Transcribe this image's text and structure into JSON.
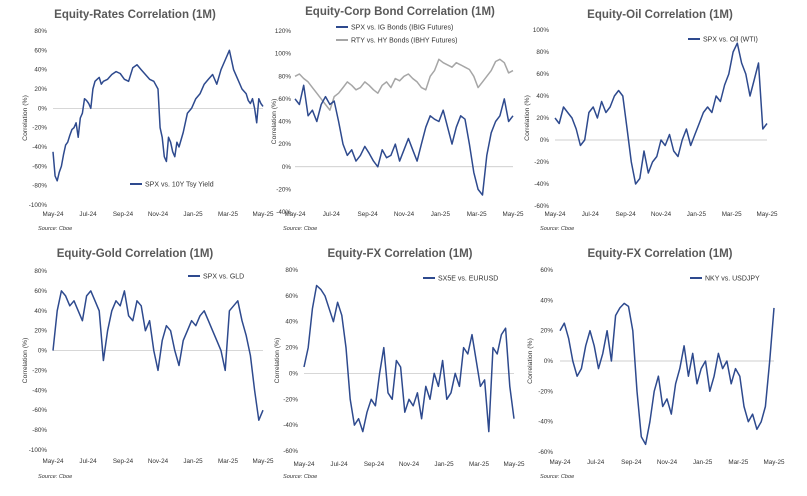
{
  "chart_data": [
    {
      "type": "line",
      "title": "Equity-Rates Correlation (1M)",
      "ylabel": "Correlation (%)",
      "source": "Source: Cboe",
      "ylim": [
        -100,
        80
      ],
      "yticks": [
        "80%",
        "60%",
        "40%",
        "20%",
        "0%",
        "-20%",
        "-40%",
        "-60%",
        "-80%",
        "-100%"
      ],
      "xticks": [
        "May-24",
        "Jul-24",
        "Sep-24",
        "Nov-24",
        "Jan-25",
        "Mar-25",
        "May-25"
      ],
      "legend_position": "bottom-left",
      "series": [
        {
          "name": "SPX vs. 10Y Tsy Yield",
          "color": "#2e4a8e",
          "x": [
            0,
            0.01,
            0.02,
            0.03,
            0.04,
            0.05,
            0.06,
            0.07,
            0.08,
            0.09,
            0.1,
            0.11,
            0.12,
            0.13,
            0.14,
            0.15,
            0.16,
            0.17,
            0.18,
            0.19,
            0.2,
            0.21,
            0.22,
            0.23,
            0.24,
            0.26,
            0.28,
            0.3,
            0.32,
            0.34,
            0.36,
            0.38,
            0.4,
            0.42,
            0.44,
            0.46,
            0.48,
            0.5,
            0.51,
            0.52,
            0.53,
            0.54,
            0.55,
            0.56,
            0.57,
            0.58,
            0.59,
            0.6,
            0.62,
            0.64,
            0.66,
            0.68,
            0.7,
            0.72,
            0.74,
            0.76,
            0.78,
            0.8,
            0.82,
            0.84,
            0.86,
            0.88,
            0.9,
            0.92,
            0.93,
            0.94,
            0.95,
            0.96,
            0.97,
            0.98,
            0.99,
            1
          ],
          "values": [
            -45,
            -70,
            -75,
            -66,
            -60,
            -48,
            -38,
            -35,
            -28,
            -22,
            -20,
            -15,
            -30,
            -10,
            -5,
            10,
            8,
            5,
            0,
            20,
            28,
            30,
            32,
            25,
            28,
            30,
            35,
            38,
            36,
            30,
            28,
            42,
            45,
            40,
            35,
            30,
            28,
            20,
            -20,
            -30,
            -50,
            -55,
            -30,
            -35,
            -45,
            -50,
            -35,
            -40,
            -25,
            -5,
            0,
            10,
            15,
            25,
            30,
            35,
            25,
            40,
            50,
            60,
            40,
            30,
            20,
            15,
            8,
            5,
            10,
            0,
            -15,
            10,
            5,
            2
          ]
        }
      ]
    },
    {
      "type": "line",
      "title": "Equity-Corp Bond Correlation (1M)",
      "ylabel": "Correlation (%)",
      "source": "Source: Cboe",
      "ylim": [
        -40,
        120
      ],
      "yticks": [
        "120%",
        "100%",
        "80%",
        "60%",
        "40%",
        "20%",
        "0%",
        "-20%",
        "-40%"
      ],
      "xticks": [
        "May-24",
        "Jul-24",
        "Sep-24",
        "Nov-24",
        "Jan-25",
        "Mar-25",
        "May-25"
      ],
      "legend_position": "top-center",
      "series": [
        {
          "name": "SPX vs. IG Bonds (IBIG Futures)",
          "color": "#2e4a8e",
          "x": [
            0,
            0.02,
            0.04,
            0.06,
            0.08,
            0.1,
            0.12,
            0.14,
            0.16,
            0.18,
            0.2,
            0.22,
            0.24,
            0.26,
            0.28,
            0.3,
            0.32,
            0.34,
            0.36,
            0.38,
            0.4,
            0.42,
            0.44,
            0.46,
            0.48,
            0.5,
            0.52,
            0.54,
            0.56,
            0.58,
            0.6,
            0.62,
            0.64,
            0.66,
            0.68,
            0.7,
            0.72,
            0.74,
            0.76,
            0.78,
            0.8,
            0.82,
            0.84,
            0.86,
            0.88,
            0.9,
            0.92,
            0.94,
            0.96,
            0.98,
            1
          ],
          "values": [
            60,
            55,
            72,
            45,
            50,
            40,
            55,
            62,
            55,
            58,
            40,
            20,
            10,
            15,
            5,
            10,
            18,
            12,
            5,
            0,
            15,
            8,
            10,
            20,
            5,
            15,
            25,
            15,
            5,
            20,
            35,
            45,
            42,
            40,
            50,
            35,
            20,
            35,
            45,
            42,
            20,
            -5,
            -20,
            -25,
            10,
            30,
            40,
            45,
            60,
            40,
            45
          ]
        },
        {
          "name": "RTY vs. HY Bonds (IBHY Futures)",
          "color": "#a6a6a6",
          "x": [
            0,
            0.02,
            0.04,
            0.06,
            0.08,
            0.1,
            0.12,
            0.14,
            0.16,
            0.18,
            0.2,
            0.22,
            0.24,
            0.26,
            0.28,
            0.3,
            0.32,
            0.34,
            0.36,
            0.38,
            0.4,
            0.42,
            0.44,
            0.46,
            0.48,
            0.5,
            0.52,
            0.54,
            0.56,
            0.58,
            0.6,
            0.62,
            0.64,
            0.66,
            0.68,
            0.7,
            0.72,
            0.74,
            0.76,
            0.78,
            0.8,
            0.82,
            0.84,
            0.86,
            0.88,
            0.9,
            0.92,
            0.94,
            0.96,
            0.98,
            1
          ],
          "values": [
            80,
            82,
            78,
            75,
            70,
            65,
            60,
            55,
            50,
            62,
            65,
            70,
            75,
            72,
            68,
            70,
            75,
            72,
            68,
            65,
            72,
            75,
            70,
            78,
            76,
            80,
            82,
            78,
            75,
            70,
            68,
            80,
            85,
            95,
            92,
            90,
            88,
            92,
            90,
            88,
            86,
            80,
            70,
            75,
            80,
            85,
            93,
            95,
            92,
            83,
            85
          ]
        }
      ]
    },
    {
      "type": "line",
      "title": "Equity-Oil Correlation (1M)",
      "ylabel": "Correlation (%)",
      "source": "Source: Cboe",
      "ylim": [
        -60,
        100
      ],
      "yticks": [
        "100%",
        "80%",
        "60%",
        "40%",
        "20%",
        "0%",
        "-20%",
        "-40%",
        "-60%"
      ],
      "xticks": [
        "May-24",
        "Jul-24",
        "Sep-24",
        "Nov-24",
        "Jan-25",
        "Mar-25",
        "May-25"
      ],
      "legend_position": "top-right",
      "series": [
        {
          "name": "SPX vs. Oil (WTI)",
          "color": "#2e4a8e",
          "x": [
            0,
            0.02,
            0.04,
            0.06,
            0.08,
            0.1,
            0.12,
            0.14,
            0.16,
            0.18,
            0.2,
            0.22,
            0.24,
            0.26,
            0.28,
            0.3,
            0.32,
            0.34,
            0.36,
            0.38,
            0.4,
            0.42,
            0.44,
            0.46,
            0.48,
            0.5,
            0.52,
            0.54,
            0.56,
            0.58,
            0.6,
            0.62,
            0.64,
            0.66,
            0.68,
            0.7,
            0.72,
            0.74,
            0.76,
            0.78,
            0.8,
            0.82,
            0.84,
            0.86,
            0.88,
            0.9,
            0.92,
            0.94,
            0.96,
            0.98,
            1
          ],
          "values": [
            20,
            15,
            30,
            25,
            20,
            10,
            -5,
            0,
            25,
            30,
            20,
            35,
            25,
            30,
            40,
            45,
            40,
            10,
            -20,
            -40,
            -35,
            -10,
            -30,
            -20,
            -15,
            0,
            -5,
            5,
            -10,
            -15,
            0,
            10,
            -5,
            5,
            15,
            25,
            30,
            25,
            40,
            35,
            50,
            60,
            80,
            88,
            70,
            60,
            40,
            55,
            70,
            10,
            15
          ]
        }
      ]
    },
    {
      "type": "line",
      "title": "Equity-Gold Correlation (1M)",
      "ylabel": "Correlation (%)",
      "source": "Source: Cboe",
      "ylim": [
        -100,
        80
      ],
      "yticks": [
        "80%",
        "60%",
        "40%",
        "20%",
        "0%",
        "-20%",
        "-40%",
        "-60%",
        "-80%",
        "-100%"
      ],
      "xticks": [
        "May-24",
        "Jul-24",
        "Sep-24",
        "Nov-24",
        "Jan-25",
        "Mar-25",
        "May-25"
      ],
      "legend_position": "top-right",
      "series": [
        {
          "name": "SPX vs. GLD",
          "color": "#2e4a8e",
          "x": [
            0,
            0.02,
            0.04,
            0.06,
            0.08,
            0.1,
            0.12,
            0.14,
            0.16,
            0.18,
            0.2,
            0.22,
            0.24,
            0.26,
            0.28,
            0.3,
            0.32,
            0.34,
            0.36,
            0.38,
            0.4,
            0.42,
            0.44,
            0.46,
            0.48,
            0.5,
            0.52,
            0.54,
            0.56,
            0.58,
            0.6,
            0.62,
            0.64,
            0.66,
            0.68,
            0.7,
            0.72,
            0.74,
            0.76,
            0.78,
            0.8,
            0.82,
            0.84,
            0.86,
            0.88,
            0.9,
            0.92,
            0.94,
            0.96,
            0.98,
            1
          ],
          "values": [
            0,
            40,
            60,
            55,
            45,
            50,
            40,
            30,
            55,
            60,
            50,
            40,
            -10,
            20,
            40,
            50,
            45,
            60,
            35,
            30,
            50,
            45,
            20,
            30,
            0,
            -20,
            10,
            25,
            20,
            0,
            -15,
            10,
            20,
            30,
            25,
            35,
            40,
            30,
            20,
            10,
            0,
            -20,
            40,
            45,
            50,
            30,
            15,
            -5,
            -40,
            -70,
            -60
          ]
        }
      ]
    },
    {
      "type": "line",
      "title": "Equity-FX Correlation (1M)",
      "ylabel": "Correlation (%)",
      "source": "Source: Cboe",
      "ylim": [
        -60,
        80
      ],
      "yticks": [
        "80%",
        "60%",
        "40%",
        "20%",
        "0%",
        "-20%",
        "-40%",
        "-60%"
      ],
      "xticks": [
        "May-24",
        "Jul-24",
        "Sep-24",
        "Nov-24",
        "Jan-25",
        "Mar-25",
        "May-25"
      ],
      "legend_position": "top-right",
      "series": [
        {
          "name": "SX5E vs. EURUSD",
          "color": "#2e4a8e",
          "x": [
            0,
            0.02,
            0.04,
            0.06,
            0.08,
            0.1,
            0.12,
            0.14,
            0.16,
            0.18,
            0.2,
            0.22,
            0.24,
            0.26,
            0.28,
            0.3,
            0.32,
            0.34,
            0.36,
            0.38,
            0.4,
            0.42,
            0.44,
            0.46,
            0.48,
            0.5,
            0.52,
            0.54,
            0.56,
            0.58,
            0.6,
            0.62,
            0.64,
            0.66,
            0.68,
            0.7,
            0.72,
            0.74,
            0.76,
            0.78,
            0.8,
            0.82,
            0.84,
            0.86,
            0.88,
            0.9,
            0.92,
            0.94,
            0.96,
            0.98,
            1
          ],
          "values": [
            5,
            20,
            50,
            68,
            65,
            60,
            50,
            40,
            55,
            45,
            20,
            -20,
            -40,
            -35,
            -45,
            -30,
            -20,
            -25,
            0,
            20,
            -15,
            -20,
            10,
            5,
            -30,
            -20,
            -25,
            -15,
            -35,
            -10,
            -20,
            0,
            -10,
            10,
            -20,
            -15,
            0,
            -10,
            20,
            15,
            30,
            10,
            -10,
            -5,
            -45,
            20,
            15,
            30,
            35,
            -10,
            -35
          ]
        }
      ]
    },
    {
      "type": "line",
      "title": "Equity-FX Correlation (1M)",
      "ylabel": "Correlation (%)",
      "source": "Source: Cboe",
      "ylim": [
        -60,
        60
      ],
      "yticks": [
        "60%",
        "40%",
        "20%",
        "0%",
        "-20%",
        "-40%",
        "-60%"
      ],
      "xticks": [
        "May-24",
        "Jul-24",
        "Sep-24",
        "Nov-24",
        "Jan-25",
        "Mar-25",
        "May-25"
      ],
      "legend_position": "top-right",
      "series": [
        {
          "name": "NKY vs. USDJPY",
          "color": "#2e4a8e",
          "x": [
            0,
            0.02,
            0.04,
            0.06,
            0.08,
            0.1,
            0.12,
            0.14,
            0.16,
            0.18,
            0.2,
            0.22,
            0.24,
            0.26,
            0.28,
            0.3,
            0.32,
            0.34,
            0.36,
            0.38,
            0.4,
            0.42,
            0.44,
            0.46,
            0.48,
            0.5,
            0.52,
            0.54,
            0.56,
            0.58,
            0.6,
            0.62,
            0.64,
            0.66,
            0.68,
            0.7,
            0.72,
            0.74,
            0.76,
            0.78,
            0.8,
            0.82,
            0.84,
            0.86,
            0.88,
            0.9,
            0.92,
            0.94,
            0.96,
            0.98,
            1
          ],
          "values": [
            20,
            25,
            15,
            0,
            -10,
            -5,
            10,
            20,
            10,
            -5,
            5,
            20,
            0,
            30,
            35,
            38,
            36,
            20,
            -20,
            -50,
            -55,
            -40,
            -20,
            -10,
            -30,
            -25,
            -35,
            -15,
            -5,
            10,
            -10,
            5,
            -15,
            -5,
            0,
            -20,
            -10,
            5,
            -5,
            0,
            -15,
            -5,
            -10,
            -30,
            -40,
            -35,
            -45,
            -40,
            -30,
            0,
            35
          ]
        }
      ]
    }
  ]
}
